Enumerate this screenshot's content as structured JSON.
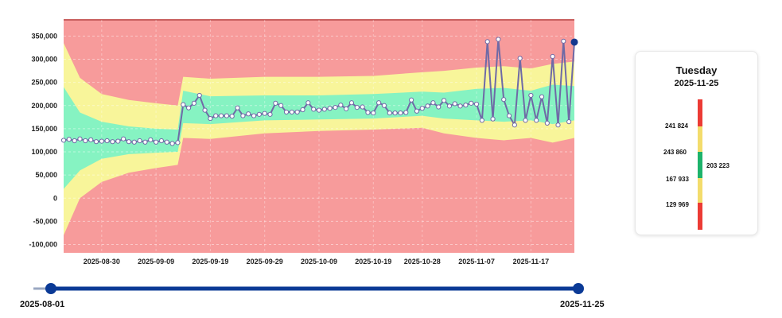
{
  "chart_data": {
    "type": "area",
    "y_ticks": [
      "350,000",
      "300,000",
      "250,000",
      "200,000",
      "150,000",
      "100,000",
      "50,000",
      "0",
      "-50,000",
      "-100,000"
    ],
    "y_tick_values": [
      350000,
      300000,
      250000,
      200000,
      150000,
      100000,
      50000,
      0,
      -50000,
      -100000
    ],
    "ylim": [
      -118000,
      385000
    ],
    "x_ticks": [
      "2025-08-30",
      "2025-09-09",
      "2025-09-19",
      "2025-09-29",
      "2025-10-09",
      "2025-10-19",
      "2025-10-28",
      "2025-11-07",
      "2025-11-17"
    ],
    "xlim": [
      "2025-08-23",
      "2025-11-25"
    ],
    "grid": true,
    "colors": {
      "background": "#f79b9b",
      "yellow": "#f8f59a",
      "green": "#86f3c2",
      "line": "#6f6aa6",
      "marker_fill": "#ffffff",
      "last_point": "#14388f"
    },
    "actual": [
      [
        "2025-08-23",
        125000
      ],
      [
        "2025-08-24",
        127000
      ],
      [
        "2025-08-25",
        124000
      ],
      [
        "2025-08-26",
        128000
      ],
      [
        "2025-08-27",
        124000
      ],
      [
        "2025-08-28",
        126000
      ],
      [
        "2025-08-29",
        122000
      ],
      [
        "2025-08-30",
        123000
      ],
      [
        "2025-08-31",
        124000
      ],
      [
        "2025-09-01",
        122000
      ],
      [
        "2025-09-02",
        123000
      ],
      [
        "2025-09-03",
        128000
      ],
      [
        "2025-09-04",
        122000
      ],
      [
        "2025-09-05",
        121000
      ],
      [
        "2025-09-06",
        124000
      ],
      [
        "2025-09-07",
        121000
      ],
      [
        "2025-09-08",
        126000
      ],
      [
        "2025-09-09",
        121000
      ],
      [
        "2025-09-10",
        124000
      ],
      [
        "2025-09-11",
        121000
      ],
      [
        "2025-09-12",
        118000
      ],
      [
        "2025-09-13",
        120000
      ],
      [
        "2025-09-14",
        202000
      ],
      [
        "2025-09-15",
        195000
      ],
      [
        "2025-09-16",
        205000
      ],
      [
        "2025-09-17",
        222000
      ],
      [
        "2025-09-18",
        190000
      ],
      [
        "2025-09-19",
        172000
      ],
      [
        "2025-09-20",
        178000
      ],
      [
        "2025-09-21",
        178000
      ],
      [
        "2025-09-22",
        178000
      ],
      [
        "2025-09-23",
        177000
      ],
      [
        "2025-09-24",
        195000
      ],
      [
        "2025-09-25",
        178000
      ],
      [
        "2025-09-26",
        182000
      ],
      [
        "2025-09-27",
        178000
      ],
      [
        "2025-09-28",
        181000
      ],
      [
        "2025-09-29",
        183000
      ],
      [
        "2025-09-30",
        181000
      ],
      [
        "2025-10-01",
        205000
      ],
      [
        "2025-10-02",
        200000
      ],
      [
        "2025-10-03",
        186000
      ],
      [
        "2025-10-04",
        186000
      ],
      [
        "2025-10-05",
        186000
      ],
      [
        "2025-10-06",
        191000
      ],
      [
        "2025-10-07",
        206000
      ],
      [
        "2025-10-08",
        192000
      ],
      [
        "2025-10-09",
        190000
      ],
      [
        "2025-10-10",
        192000
      ],
      [
        "2025-10-11",
        194000
      ],
      [
        "2025-10-12",
        196000
      ],
      [
        "2025-10-13",
        201000
      ],
      [
        "2025-10-14",
        193000
      ],
      [
        "2025-10-15",
        206000
      ],
      [
        "2025-10-16",
        196000
      ],
      [
        "2025-10-17",
        197000
      ],
      [
        "2025-10-18",
        185000
      ],
      [
        "2025-10-19",
        184000
      ],
      [
        "2025-10-20",
        206000
      ],
      [
        "2025-10-21",
        200000
      ],
      [
        "2025-10-22",
        184000
      ],
      [
        "2025-10-23",
        184000
      ],
      [
        "2025-10-24",
        184000
      ],
      [
        "2025-10-25",
        185000
      ],
      [
        "2025-10-26",
        212000
      ],
      [
        "2025-10-27",
        188000
      ],
      [
        "2025-10-28",
        194000
      ],
      [
        "2025-10-29",
        199000
      ],
      [
        "2025-10-30",
        206000
      ],
      [
        "2025-10-31",
        197000
      ],
      [
        "2025-11-01",
        211000
      ],
      [
        "2025-11-02",
        199000
      ],
      [
        "2025-11-03",
        204000
      ],
      [
        "2025-11-04",
        199000
      ],
      [
        "2025-11-05",
        201000
      ],
      [
        "2025-11-06",
        205000
      ],
      [
        "2025-11-07",
        203000
      ],
      [
        "2025-11-08",
        168000
      ],
      [
        "2025-11-09",
        338000
      ],
      [
        "2025-11-10",
        171000
      ],
      [
        "2025-11-11",
        343000
      ],
      [
        "2025-11-12",
        213000
      ],
      [
        "2025-11-13",
        178000
      ],
      [
        "2025-11-14",
        158000
      ],
      [
        "2025-11-15",
        302000
      ],
      [
        "2025-11-16",
        168000
      ],
      [
        "2025-11-17",
        222000
      ],
      [
        "2025-11-18",
        168000
      ],
      [
        "2025-11-19",
        219000
      ],
      [
        "2025-11-20",
        162000
      ],
      [
        "2025-11-21",
        306000
      ],
      [
        "2025-11-22",
        158000
      ],
      [
        "2025-11-23",
        339000
      ],
      [
        "2025-11-24",
        165000
      ],
      [
        "2025-11-25",
        337000
      ]
    ],
    "band_outer_upper": [
      [
        "2025-08-23",
        335000
      ],
      [
        "2025-08-26",
        260000
      ],
      [
        "2025-08-30",
        225000
      ],
      [
        "2025-09-04",
        212000
      ],
      [
        "2025-09-09",
        205000
      ],
      [
        "2025-09-13",
        200000
      ],
      [
        "2025-09-14",
        262000
      ],
      [
        "2025-09-19",
        258000
      ],
      [
        "2025-09-29",
        262000
      ],
      [
        "2025-10-09",
        262000
      ],
      [
        "2025-10-19",
        264000
      ],
      [
        "2025-10-28",
        272000
      ],
      [
        "2025-11-01",
        275000
      ],
      [
        "2025-11-07",
        282000
      ],
      [
        "2025-11-12",
        285000
      ],
      [
        "2025-11-17",
        280000
      ],
      [
        "2025-11-21",
        290000
      ],
      [
        "2025-11-25",
        295000
      ]
    ],
    "band_inner_upper": [
      [
        "2025-08-23",
        240000
      ],
      [
        "2025-08-26",
        185000
      ],
      [
        "2025-08-30",
        165000
      ],
      [
        "2025-09-04",
        155000
      ],
      [
        "2025-09-09",
        150000
      ],
      [
        "2025-09-13",
        148000
      ],
      [
        "2025-09-14",
        232000
      ],
      [
        "2025-09-19",
        220000
      ],
      [
        "2025-09-29",
        222000
      ],
      [
        "2025-10-09",
        222000
      ],
      [
        "2025-10-19",
        225000
      ],
      [
        "2025-10-28",
        230000
      ],
      [
        "2025-11-01",
        228000
      ],
      [
        "2025-11-07",
        236000
      ],
      [
        "2025-11-12",
        238000
      ],
      [
        "2025-11-17",
        232000
      ],
      [
        "2025-11-21",
        245000
      ],
      [
        "2025-11-25",
        242000
      ]
    ],
    "band_inner_lower": [
      [
        "2025-08-23",
        20000
      ],
      [
        "2025-08-26",
        60000
      ],
      [
        "2025-08-30",
        85000
      ],
      [
        "2025-09-04",
        95000
      ],
      [
        "2025-09-09",
        98000
      ],
      [
        "2025-09-13",
        100000
      ],
      [
        "2025-09-14",
        162000
      ],
      [
        "2025-09-19",
        160000
      ],
      [
        "2025-09-29",
        168000
      ],
      [
        "2025-10-09",
        170000
      ],
      [
        "2025-10-19",
        172000
      ],
      [
        "2025-10-28",
        178000
      ],
      [
        "2025-11-01",
        172000
      ],
      [
        "2025-11-07",
        168000
      ],
      [
        "2025-11-12",
        165000
      ],
      [
        "2025-11-17",
        168000
      ],
      [
        "2025-11-21",
        160000
      ],
      [
        "2025-11-25",
        168000
      ]
    ],
    "band_outer_lower": [
      [
        "2025-08-23",
        -80000
      ],
      [
        "2025-08-26",
        0
      ],
      [
        "2025-08-30",
        35000
      ],
      [
        "2025-09-04",
        55000
      ],
      [
        "2025-09-09",
        65000
      ],
      [
        "2025-09-13",
        72000
      ],
      [
        "2025-09-14",
        130000
      ],
      [
        "2025-09-19",
        128000
      ],
      [
        "2025-09-29",
        140000
      ],
      [
        "2025-10-09",
        145000
      ],
      [
        "2025-10-19",
        148000
      ],
      [
        "2025-10-28",
        152000
      ],
      [
        "2025-11-01",
        140000
      ],
      [
        "2025-11-07",
        130000
      ],
      [
        "2025-11-12",
        125000
      ],
      [
        "2025-11-17",
        130000
      ],
      [
        "2025-11-21",
        120000
      ],
      [
        "2025-11-25",
        130000
      ]
    ]
  },
  "panel": {
    "day": "Tuesday",
    "date": "2025-11-25",
    "labels": [
      "241 824",
      "243 860",
      "167 933",
      "129 969"
    ],
    "value": "203 223"
  },
  "slider": {
    "start_label": "2025-08-01",
    "end_label": "2025-11-25",
    "track_color": "#0b3a96"
  }
}
